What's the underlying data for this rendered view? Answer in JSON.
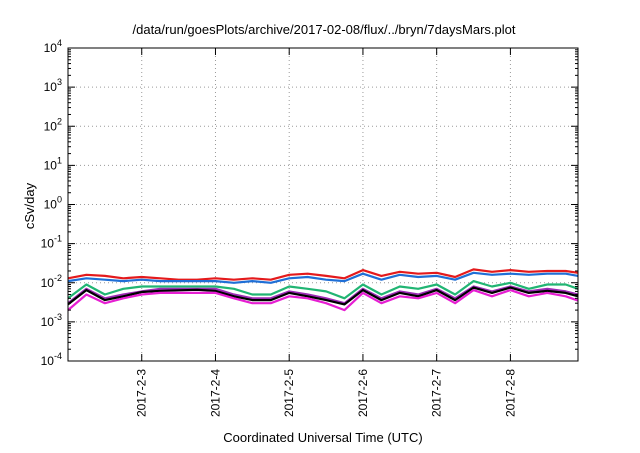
{
  "chart_data": {
    "type": "line",
    "title": "/data/run/goesPlots/archive/2017-02-08/flux/../bryn/7daysMars.plot",
    "xlabel": "Coordinated Universal Time (UTC)",
    "ylabel": "cSv/day",
    "yscale": "log",
    "ylim": [
      0.0001,
      10000
    ],
    "grid": true,
    "legend": "none",
    "y_ticks": [
      {
        "base": "10",
        "exp": "-4"
      },
      {
        "base": "10",
        "exp": "-3"
      },
      {
        "base": "10",
        "exp": "-2"
      },
      {
        "base": "10",
        "exp": "-1"
      },
      {
        "base": "10",
        "exp": "0"
      },
      {
        "base": "10",
        "exp": "1"
      },
      {
        "base": "10",
        "exp": "2"
      },
      {
        "base": "10",
        "exp": "3"
      },
      {
        "base": "10",
        "exp": "4"
      }
    ],
    "x_ticks": [
      "2017-2-3",
      "2017-2-4",
      "2017-2-5",
      "2017-2-6",
      "2017-2-7",
      "2017-2-8"
    ],
    "xlim": [
      "2017-02-02 00:00",
      "2017-02-08 22:00"
    ],
    "x": [
      "2017-02-02 00:00",
      "2017-02-02 06:00",
      "2017-02-02 12:00",
      "2017-02-02 18:00",
      "2017-02-03 00:00",
      "2017-02-03 06:00",
      "2017-02-03 12:00",
      "2017-02-03 18:00",
      "2017-02-04 00:00",
      "2017-02-04 06:00",
      "2017-02-04 12:00",
      "2017-02-04 18:00",
      "2017-02-05 00:00",
      "2017-02-05 06:00",
      "2017-02-05 12:00",
      "2017-02-05 18:00",
      "2017-02-06 00:00",
      "2017-02-06 06:00",
      "2017-02-06 12:00",
      "2017-02-06 18:00",
      "2017-02-07 00:00",
      "2017-02-07 06:00",
      "2017-02-07 12:00",
      "2017-02-07 18:00",
      "2017-02-08 00:00",
      "2017-02-08 06:00",
      "2017-02-08 12:00",
      "2017-02-08 18:00",
      "2017-02-08 22:00"
    ],
    "series": [
      {
        "color": "#e41a1c",
        "values": [
          0.013,
          0.016,
          0.015,
          0.013,
          0.014,
          0.013,
          0.012,
          0.012,
          0.013,
          0.012,
          0.013,
          0.012,
          0.016,
          0.017,
          0.015,
          0.013,
          0.021,
          0.015,
          0.019,
          0.017,
          0.018,
          0.014,
          0.022,
          0.019,
          0.021,
          0.019,
          0.02,
          0.02,
          0.018
        ]
      },
      {
        "color": "#1f6fd6",
        "values": [
          0.011,
          0.013,
          0.012,
          0.011,
          0.012,
          0.011,
          0.011,
          0.011,
          0.011,
          0.01,
          0.011,
          0.01,
          0.013,
          0.014,
          0.012,
          0.011,
          0.017,
          0.012,
          0.016,
          0.014,
          0.015,
          0.012,
          0.018,
          0.016,
          0.017,
          0.016,
          0.017,
          0.017,
          0.015
        ]
      },
      {
        "color": "#21b573",
        "values": [
          0.004,
          0.009,
          0.005,
          0.007,
          0.008,
          0.008,
          0.008,
          0.008,
          0.008,
          0.007,
          0.005,
          0.005,
          0.008,
          0.007,
          0.006,
          0.004,
          0.009,
          0.005,
          0.008,
          0.007,
          0.009,
          0.005,
          0.011,
          0.008,
          0.01,
          0.007,
          0.009,
          0.009,
          0.007
        ]
      },
      {
        "color": "#9d2bb5",
        "values": [
          0.003,
          0.007,
          0.004,
          0.005,
          0.006,
          0.007,
          0.007,
          0.007,
          0.007,
          0.005,
          0.004,
          0.004,
          0.006,
          0.005,
          0.004,
          0.003,
          0.007,
          0.004,
          0.006,
          0.005,
          0.007,
          0.004,
          0.008,
          0.006,
          0.008,
          0.006,
          0.007,
          0.006,
          0.005
        ]
      },
      {
        "color": "#000000",
        "values": [
          0.0028,
          0.0065,
          0.0036,
          0.0045,
          0.0058,
          0.0062,
          0.0064,
          0.0066,
          0.0062,
          0.0045,
          0.0036,
          0.0036,
          0.0055,
          0.0045,
          0.0036,
          0.0028,
          0.0065,
          0.0036,
          0.0055,
          0.0045,
          0.0065,
          0.0036,
          0.0075,
          0.0055,
          0.0075,
          0.0055,
          0.0062,
          0.0055,
          0.0045
        ]
      },
      {
        "color": "#e61ed2",
        "values": [
          0.002,
          0.005,
          0.003,
          0.004,
          0.005,
          0.0055,
          0.0055,
          0.0055,
          0.0055,
          0.004,
          0.003,
          0.003,
          0.0045,
          0.004,
          0.003,
          0.002,
          0.0055,
          0.003,
          0.0045,
          0.004,
          0.0055,
          0.003,
          0.0065,
          0.0045,
          0.0065,
          0.0045,
          0.0055,
          0.0045,
          0.0035
        ]
      }
    ]
  }
}
